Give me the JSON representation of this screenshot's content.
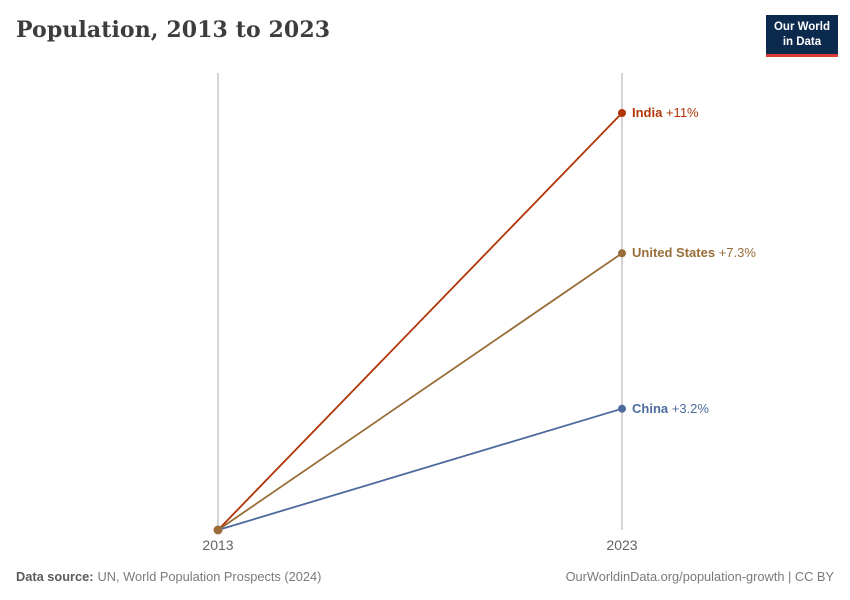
{
  "header": {
    "title": "Population, 2013 to 2023",
    "logo": {
      "line1": "Our World",
      "line2": "in Data",
      "bg_color": "#0c2a4d",
      "bar_color": "#d93c34"
    }
  },
  "chart_data": {
    "type": "line",
    "title": "Population, 2013 to 2023",
    "x": [
      "2013",
      "2023"
    ],
    "x_tick_labels": [
      "2013",
      "2023"
    ],
    "grid": "vertical-gridlines-only",
    "legend_position": "end-of-line-labels",
    "ylim_pct": [
      0,
      12
    ],
    "series": [
      {
        "name": "India",
        "values_pct": [
          0,
          11
        ],
        "change_label": "+11%",
        "color": "#b13507"
      },
      {
        "name": "United States",
        "values_pct": [
          0,
          7.3
        ],
        "change_label": "+7.3%",
        "color": "#996d39"
      },
      {
        "name": "China",
        "values_pct": [
          0,
          3.2
        ],
        "change_label": "+3.2%",
        "color": "#4c6a9c"
      }
    ],
    "origin_dot_color": "#996d39",
    "gridline_color": "#cccccc"
  },
  "footer": {
    "source_label": "Data source:",
    "source_text": "UN, World Population Prospects (2024)",
    "credit": "OurWorldinData.org/population-growth | CC BY"
  }
}
